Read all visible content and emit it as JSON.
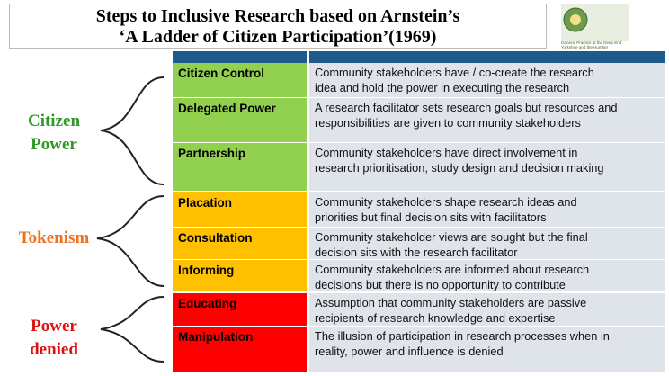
{
  "header": {
    "title": [
      "Steps to Inclusive Research based on Arnstein’s",
      "‘A Ladder of Citizen Participation’(1969)"
    ],
    "logo_text": [
      "General Practice at the Deep End",
      "Yorkshire and the Humber"
    ]
  },
  "groups": [
    {
      "label": [
        "Citizen",
        "Power"
      ],
      "rows": [
        {
          "level": "Citizen Control",
          "description": [
            "Community stakeholders have / co-create the research",
            "idea and hold the power in executing the research"
          ]
        },
        {
          "level": "Delegated Power",
          "description": [
            "A research facilitator sets research goals but resources and",
            "responsibilities are given to community stakeholders"
          ]
        },
        {
          "level": "Partnership",
          "description": [
            "Community stakeholders have direct involvement in",
            "research prioritisation, study design and decision making"
          ]
        }
      ]
    },
    {
      "label": [
        "Tokenism"
      ],
      "rows": [
        {
          "level": "Placation",
          "description": [
            "Community stakeholders shape research ideas and",
            "priorities but final decision sits with facilitators"
          ]
        },
        {
          "level": "Consultation",
          "description": [
            "Community stakeholder views are sought but the final",
            "decision sits with the research facilitator"
          ]
        },
        {
          "level": "Informing",
          "description": [
            "Community stakeholders are informed about research",
            "decisions but there is no opportunity to contribute"
          ]
        }
      ]
    },
    {
      "label": [
        "Power",
        "denied"
      ],
      "rows": [
        {
          "level": "Educating",
          "description": [
            "Assumption that community stakeholders are passive",
            "recipients of research knowledge and expertise"
          ]
        },
        {
          "level": "Manipulation",
          "description": [
            "The illusion of participation in research processes when in",
            "reality, power and influence is denied"
          ]
        }
      ]
    }
  ]
}
